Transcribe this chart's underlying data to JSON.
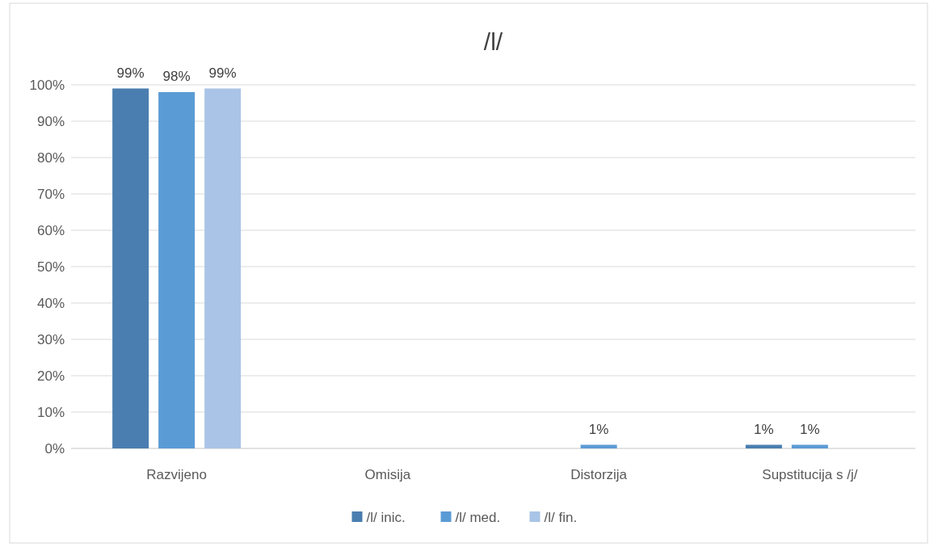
{
  "chart_data": {
    "type": "bar",
    "title": "/l/",
    "categories": [
      "Razvijeno",
      "Omisija",
      "Distorzija",
      "Supstitucija s /j/"
    ],
    "series": [
      {
        "name": "/l/ inic.",
        "color": "#4a7eb0",
        "values": [
          99,
          null,
          null,
          1
        ]
      },
      {
        "name": "/l/ med.",
        "color": "#5b9bd5",
        "values": [
          98,
          null,
          1,
          1
        ]
      },
      {
        "name": "/l/ fin.",
        "color": "#a9c4e6",
        "values": [
          99,
          null,
          null,
          null
        ]
      }
    ],
    "ylim": [
      0,
      100
    ],
    "yticks": [
      {
        "value": 0,
        "label": "0%"
      },
      {
        "value": 10,
        "label": "10%"
      },
      {
        "value": 20,
        "label": "20%"
      },
      {
        "value": 30,
        "label": "30%"
      },
      {
        "value": 40,
        "label": "40%"
      },
      {
        "value": 50,
        "label": "50%"
      },
      {
        "value": 60,
        "label": "60%"
      },
      {
        "value": 70,
        "label": "70%"
      },
      {
        "value": 80,
        "label": "80%"
      },
      {
        "value": 90,
        "label": "90%"
      },
      {
        "value": 100,
        "label": "100%"
      }
    ],
    "grid": "y",
    "legend": "bottom",
    "value_labels": [
      [
        "99%",
        null,
        null,
        "1%"
      ],
      [
        "98%",
        null,
        "1%",
        "1%"
      ],
      [
        "99%",
        null,
        null,
        null
      ]
    ]
  }
}
